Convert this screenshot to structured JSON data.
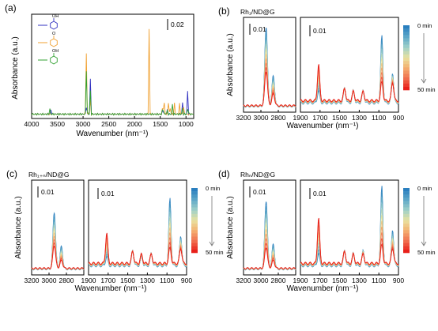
{
  "panels": {
    "a": {
      "label": "(a)",
      "ylabel": "Absorbance (a.u.)",
      "xlabel": "Wavenumber (nm⁻¹)",
      "scalebar": "0.02",
      "molecules": [
        {
          "group": "OH",
          "color": "#3030c0"
        },
        {
          "group": "O",
          "color": "#f0a030"
        },
        {
          "group": "OH",
          "color": "#30a030"
        }
      ]
    },
    "b": {
      "label": "(b)",
      "title": "Rh₁/ND@G",
      "ylabel": "Absorbance (a.u.)",
      "xlabel": "Wavenumber (nm⁻¹)",
      "scalebar_left": "0.01",
      "scalebar_right": "0.01"
    },
    "c": {
      "label": "(c)",
      "title": "Rh₁₊ₙ/ND@G",
      "ylabel": "Absorbance (a.u.)",
      "xlabel": "Wavenumber (nm⁻¹)",
      "scalebar_left": "0.01",
      "scalebar_right": "0.01"
    },
    "d": {
      "label": "(d)",
      "title": "Rhₙ/ND@G",
      "ylabel": "Absorbance (a.u.)",
      "xlabel": "Wavenumber (nm⁻¹)",
      "scalebar_left": "0.01",
      "scalebar_right": "0.01"
    }
  },
  "legend": {
    "start": "0 min",
    "end": "50 min",
    "start_color": "#2a7fbf",
    "end_color": "#e8201a"
  },
  "chart_data": [
    {
      "type": "line",
      "panel": "a",
      "title": "",
      "xlabel": "Wavenumber (nm⁻¹)",
      "ylabel": "Absorbance (a.u.)",
      "xlim": [
        4000,
        850
      ],
      "xticks": [
        4000,
        3500,
        3000,
        2500,
        2000,
        1500,
        1000
      ],
      "series": [
        {
          "color": "#3030c0",
          "peaks": [
            [
              3620,
              0.003
            ],
            [
              2930,
              0.006
            ],
            [
              2855,
              0.018
            ],
            [
              1450,
              0.004
            ],
            [
              1360,
              0.002
            ],
            [
              1070,
              0.006
            ],
            [
              970,
              0.011
            ]
          ]
        },
        {
          "color": "#f0a030",
          "peaks": [
            [
              2940,
              0.032
            ],
            [
              2865,
              0.011
            ],
            [
              1715,
              0.04
            ],
            [
              1450,
              0.008
            ],
            [
              1420,
              0.005
            ],
            [
              1345,
              0.006
            ],
            [
              1310,
              0.005
            ],
            [
              1220,
              0.006
            ],
            [
              1120,
              0.007
            ],
            [
              1050,
              0.004
            ]
          ]
        },
        {
          "color": "#30a030",
          "peaks": [
            [
              3650,
              0.003
            ],
            [
              2935,
              0.021
            ],
            [
              2860,
              0.011
            ],
            [
              1450,
              0.006
            ],
            [
              1370,
              0.003
            ],
            [
              1260,
              0.005
            ],
            [
              1070,
              0.003
            ],
            [
              960,
              0.005
            ]
          ]
        }
      ]
    },
    {
      "type": "line",
      "panel": "b",
      "title": "Rh₁/ND@G",
      "xlabel": "Wavenumber (nm⁻¹)",
      "ylabel": "Absorbance (a.u.)",
      "series_count": 11,
      "left": {
        "xlim": [
          3200,
          2600
        ],
        "xticks": [
          3200,
          3000,
          2800
        ],
        "peaks_start": [
          [
            2940,
            0.042
          ],
          [
            2858,
            0.016
          ]
        ],
        "peaks_end": [
          [
            2940,
            0.018
          ],
          [
            2858,
            0.006
          ]
        ]
      },
      "right": {
        "xlim": [
          1900,
          900
        ],
        "xticks": [
          1900,
          1700,
          1500,
          1300,
          1100,
          900
        ],
        "peaks_start": [
          [
            1715,
            0.004
          ],
          [
            1450,
            0.005
          ],
          [
            1360,
            0.004
          ],
          [
            1260,
            0.004
          ],
          [
            1070,
            0.022
          ],
          [
            960,
            0.01
          ]
        ],
        "peaks_end": [
          [
            1715,
            0.012
          ],
          [
            1450,
            0.004
          ],
          [
            1360,
            0.003
          ],
          [
            1260,
            0.003
          ],
          [
            1070,
            0.006
          ],
          [
            960,
            0.006
          ]
        ]
      }
    },
    {
      "type": "line",
      "panel": "c",
      "title": "Rh₁₊ₙ/ND@G",
      "xlabel": "Wavenumber (nm⁻¹)",
      "ylabel": "Absorbance (a.u.)",
      "series_count": 11,
      "left": {
        "xlim": [
          3200,
          2600
        ],
        "xticks": [
          3200,
          3000,
          2800
        ],
        "peaks_start": [
          [
            2940,
            0.03
          ],
          [
            2858,
            0.012
          ]
        ],
        "peaks_end": [
          [
            2940,
            0.012
          ],
          [
            2858,
            0.004
          ]
        ]
      },
      "right": {
        "xlim": [
          1900,
          900
        ],
        "xticks": [
          1900,
          1700,
          1500,
          1300,
          1100,
          900
        ],
        "peaks_start": [
          [
            1715,
            0.003
          ],
          [
            1450,
            0.005
          ],
          [
            1360,
            0.003
          ],
          [
            1260,
            0.004
          ],
          [
            1070,
            0.022
          ],
          [
            960,
            0.01
          ]
        ],
        "peaks_end": [
          [
            1715,
            0.01
          ],
          [
            1450,
            0.004
          ],
          [
            1360,
            0.003
          ],
          [
            1260,
            0.003
          ],
          [
            1070,
            0.005
          ],
          [
            960,
            0.005
          ]
        ]
      }
    },
    {
      "type": "line",
      "panel": "d",
      "title": "Rhₙ/ND@G",
      "xlabel": "Wavenumber (nm⁻¹)",
      "ylabel": "Absorbance (a.u.)",
      "series_count": 11,
      "left": {
        "xlim": [
          3200,
          2600
        ],
        "xticks": [
          3200,
          3000,
          2800
        ],
        "peaks_start": [
          [
            2940,
            0.036
          ],
          [
            2858,
            0.013
          ]
        ],
        "peaks_end": [
          [
            2940,
            0.011
          ],
          [
            2858,
            0.004
          ]
        ]
      },
      "right": {
        "xlim": [
          1900,
          900
        ],
        "xticks": [
          1900,
          1700,
          1500,
          1300,
          1100,
          900
        ],
        "peaks_start": [
          [
            1715,
            0.004
          ],
          [
            1450,
            0.005
          ],
          [
            1360,
            0.004
          ],
          [
            1260,
            0.005
          ],
          [
            1070,
            0.026
          ],
          [
            960,
            0.012
          ]
        ],
        "peaks_end": [
          [
            1715,
            0.015
          ],
          [
            1450,
            0.004
          ],
          [
            1360,
            0.003
          ],
          [
            1260,
            0.003
          ],
          [
            1070,
            0.006
          ],
          [
            960,
            0.005
          ]
        ]
      }
    }
  ]
}
